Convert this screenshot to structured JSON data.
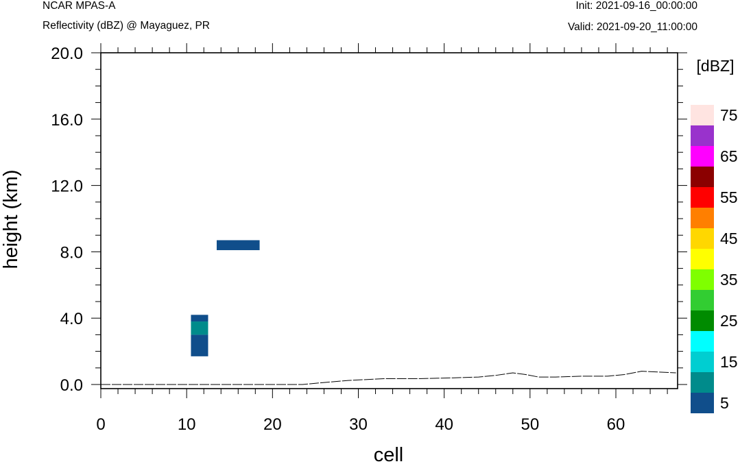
{
  "header": {
    "model": "NCAR MPAS-A",
    "subtitle": "Reflectivity (dBZ) @ Mayaguez, PR",
    "init": "Init: 2021-09-16_00:00:00",
    "valid": "Valid: 2021-09-20_11:00:00"
  },
  "chart_data": {
    "type": "heatmap",
    "xlabel": "cell",
    "ylabel": "height (km)",
    "xlim": [
      0,
      67
    ],
    "ylim": [
      -0.2,
      20.0
    ],
    "x_ticks": [
      "0",
      "10",
      "20",
      "30",
      "40",
      "50",
      "60"
    ],
    "y_ticks": [
      "0.0",
      "4.0",
      "8.0",
      "12.0",
      "16.0",
      "20.0"
    ],
    "colorbar": {
      "units": "[dBZ]",
      "levels": [
        5,
        10,
        15,
        20,
        25,
        30,
        35,
        40,
        45,
        50,
        55,
        60,
        65,
        70,
        75
      ],
      "labels": [
        "5",
        "15",
        "25",
        "35",
        "45",
        "55",
        "65",
        "75"
      ],
      "colors": [
        "#104e8b",
        "#008b8b",
        "#00ced1",
        "#00ffff",
        "#008b00",
        "#32cd32",
        "#7fff00",
        "#ffff00",
        "#ffd700",
        "#ff7f00",
        "#ff0000",
        "#8b0000",
        "#ff00ff",
        "#9932cc",
        "#ffe4e1"
      ]
    },
    "cells": [
      {
        "x0": 10.5,
        "x1": 12.5,
        "y0": 1.7,
        "y1": 3.0,
        "dbz": 5
      },
      {
        "x0": 10.5,
        "x1": 12.5,
        "y0": 3.0,
        "y1": 3.8,
        "dbz": 10
      },
      {
        "x0": 10.5,
        "x1": 12.5,
        "y0": 3.8,
        "y1": 4.2,
        "dbz": 5
      },
      {
        "x0": 13.5,
        "x1": 18.5,
        "y0": 8.1,
        "y1": 8.7,
        "dbz": 5
      }
    ],
    "terrain": {
      "x": [
        0,
        23.5,
        26,
        29,
        33,
        37,
        41,
        44,
        46,
        48,
        49.5,
        51,
        53,
        56,
        59,
        61,
        63,
        65,
        67
      ],
      "y": [
        0.0,
        0.0,
        0.12,
        0.25,
        0.35,
        0.35,
        0.4,
        0.45,
        0.55,
        0.7,
        0.6,
        0.45,
        0.45,
        0.5,
        0.5,
        0.6,
        0.8,
        0.75,
        0.7
      ]
    }
  }
}
